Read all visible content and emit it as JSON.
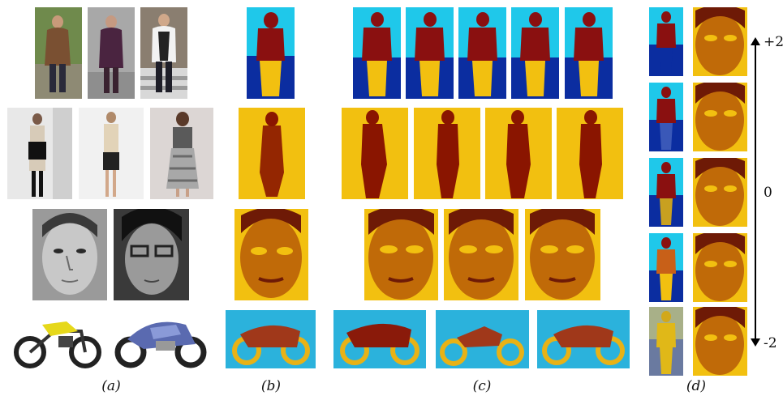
{
  "figure": {
    "captions": [
      "(a)",
      "(b)",
      "(c)",
      "(d)"
    ],
    "scale": {
      "top": "+2",
      "middle": "0",
      "bottom": "-2"
    }
  }
}
